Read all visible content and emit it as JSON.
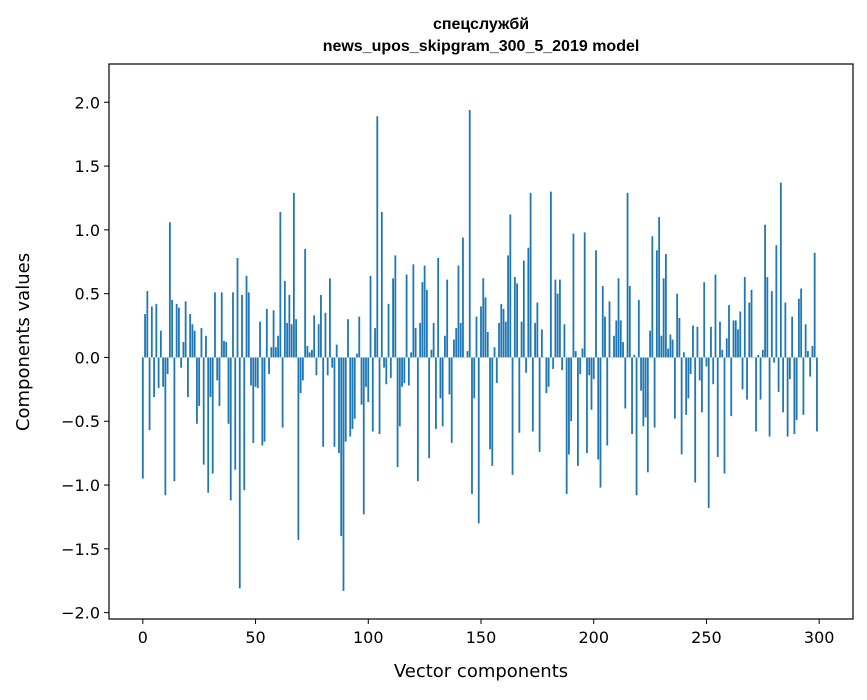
{
  "chart_data": {
    "type": "bar",
    "title_line1": "спецслужбй",
    "title_line2": "news_upos_skipgram_300_5_2019 model",
    "xlabel": "Vector components",
    "ylabel": "Components values",
    "xlim": [
      -15,
      315
    ],
    "ylim": [
      -2.05,
      2.3
    ],
    "xticks": [
      0,
      50,
      100,
      150,
      200,
      250,
      300
    ],
    "yticks": [
      -2.0,
      -1.5,
      -1.0,
      -0.5,
      0.0,
      0.5,
      1.0,
      1.5,
      2.0
    ],
    "xtick_labels": [
      "0",
      "50",
      "100",
      "150",
      "200",
      "250",
      "300"
    ],
    "ytick_labels": [
      "−2.0",
      "−1.5",
      "−1.0",
      "−0.5",
      "0.0",
      "0.5",
      "1.0",
      "1.5",
      "2.0"
    ],
    "bar_color": "#1f77b4",
    "grid": false,
    "x": "integers 0..299",
    "values": [
      -0.95,
      0.34,
      0.52,
      -0.57,
      0.4,
      -0.31,
      0.42,
      -0.24,
      0.21,
      -0.23,
      -1.08,
      -0.13,
      1.06,
      0.45,
      -0.97,
      0.42,
      0.39,
      -0.08,
      0.12,
      0.44,
      -0.31,
      0.34,
      0.26,
      0.21,
      -0.52,
      -0.38,
      0.23,
      -0.84,
      0.17,
      -1.06,
      -0.31,
      -0.91,
      0.51,
      -0.18,
      -0.38,
      0.51,
      0.13,
      0.12,
      -0.52,
      -1.12,
      0.51,
      -0.88,
      0.78,
      -1.81,
      0.49,
      -1.04,
      0.64,
      0.51,
      -0.22,
      -0.67,
      -0.23,
      -0.24,
      0.28,
      -0.69,
      -0.66,
      0.38,
      -0.13,
      0.08,
      0.37,
      0.08,
      0.17,
      1.14,
      -0.55,
      0.6,
      0.27,
      0.49,
      0.26,
      1.29,
      0.3,
      -1.43,
      -0.28,
      -0.18,
      0.85,
      0.09,
      0.04,
      0.06,
      0.33,
      -0.14,
      0.26,
      0.49,
      -0.7,
      0.35,
      -0.14,
      0.62,
      -0.08,
      -0.7,
      0.1,
      -0.75,
      -1.4,
      -1.83,
      -0.66,
      0.3,
      -0.62,
      -0.56,
      -0.48,
      0.03,
      0.32,
      -0.37,
      -1.23,
      -0.23,
      -0.35,
      0.64,
      -0.58,
      0.23,
      1.89,
      -0.6,
      1.14,
      -0.08,
      -0.21,
      0.42,
      -0.16,
      0.62,
      0.8,
      -0.86,
      -0.54,
      -0.23,
      -0.2,
      0.65,
      -0.22,
      0.04,
      0.73,
      0.23,
      -0.97,
      0.27,
      0.59,
      0.72,
      0.53,
      -0.79,
      0.06,
      0.27,
      -0.56,
      0.78,
      -0.32,
      -0.54,
      0.17,
      0.61,
      -0.29,
      -0.67,
      0.14,
      0.23,
      0.72,
      0.27,
      0.94,
      0.0,
      0.05,
      1.94,
      -1.07,
      -0.32,
      0.32,
      -1.3,
      0.4,
      0.62,
      0.47,
      0.2,
      -0.72,
      -0.85,
      0.08,
      -0.2,
      0.27,
      0.42,
      0.38,
      0.28,
      0.8,
      1.12,
      -0.92,
      0.63,
      0.58,
      -0.59,
      0.28,
      0.76,
      -0.12,
      0.86,
      1.29,
      -0.58,
      0.27,
      0.43,
      -0.74,
      0.22,
      0.0,
      -0.28,
      -0.23,
      1.3,
      -0.09,
      0.61,
      0.5,
      0.61,
      -0.1,
      0.26,
      -1.07,
      -0.76,
      -0.5,
      0.97,
      0.05,
      -0.85,
      -0.13,
      0.07,
      0.98,
      -0.75,
      -0.14,
      -0.41,
      -0.17,
      0.84,
      -0.8,
      -1.02,
      0.56,
      0.32,
      -0.69,
      0.44,
      0.0,
      0.17,
      0.29,
      0.62,
      0.29,
      0.12,
      -0.4,
      1.29,
      0.56,
      -0.6,
      0.02,
      -1.08,
      0.45,
      -0.26,
      -0.54,
      -0.47,
      -0.9,
      0.21,
      0.95,
      -0.55,
      0.84,
      1.1,
      0.17,
      0.62,
      0.81,
      0.07,
      0.18,
      0.14,
      -0.48,
      0.5,
      0.31,
      -0.76,
      0.04,
      -0.45,
      -0.32,
      -0.13,
      0.25,
      -0.98,
      0.24,
      -0.18,
      -0.43,
      0.59,
      -0.07,
      -1.18,
      0.24,
      -0.21,
      0.65,
      -0.78,
      0.28,
      0.06,
      -0.91,
      0.15,
      0.41,
      -0.46,
      0.29,
      0.29,
      0.22,
      0.36,
      -0.25,
      0.63,
      -0.33,
      0.43,
      0.53,
      0.0,
      -0.58,
      0.02,
      -0.33,
      0.06,
      1.04,
      0.63,
      -0.62,
      0.52,
      -0.04,
      0.88,
      -0.27,
      1.37,
      -0.43,
      0.43,
      -0.62,
      -0.17,
      0.32,
      -0.6,
      -0.49,
      0.46,
      0.54,
      -0.45,
      0.26,
      0.05,
      -0.15,
      0.09,
      0.82,
      -0.58
    ]
  }
}
